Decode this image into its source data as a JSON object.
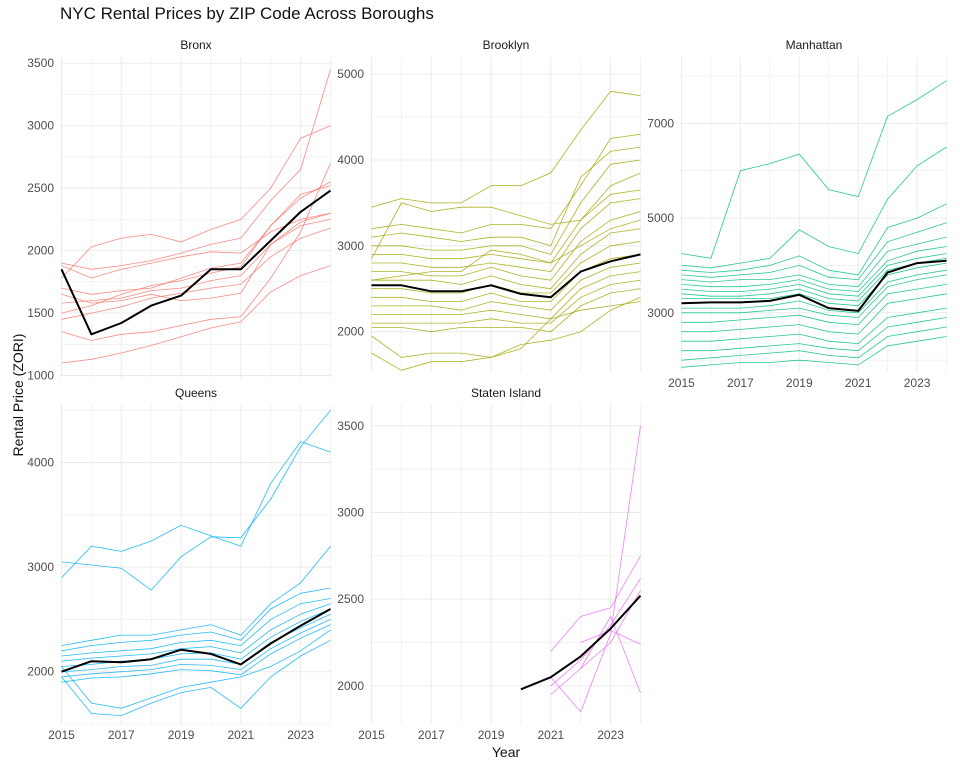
{
  "chart_data": {
    "type": "line",
    "title": "NYC Rental Prices by ZIP Code Across Boroughs",
    "xlabel": "Year",
    "ylabel": "Rental Price (ZORI)",
    "x_ticks": [
      2015,
      2017,
      2019,
      2021,
      2023
    ],
    "grid": true,
    "layout": "facet grid, 3 columns x 2 rows, independent y scales",
    "summary_line": {
      "color": "#000000",
      "description": "borough average"
    },
    "panels": [
      {
        "name": "Bronx",
        "color": "#F8766D",
        "xlim": [
          2015,
          2024
        ],
        "ylim": [
          980,
          3550
        ],
        "y_ticks": [
          1000,
          1500,
          2000,
          2500,
          3000,
          3500
        ],
        "average": {
          "x": [
            2015,
            2016,
            2017,
            2018,
            2019,
            2020,
            2021,
            2022,
            2023,
            2024
          ],
          "y": [
            1850,
            1330,
            1420,
            1560,
            1640,
            1850,
            1850,
            2080,
            2310,
            2480
          ]
        },
        "zip_series": [
          [
            1880,
            1780,
            1850,
            1900,
            1950,
            1990,
            1980,
            2150,
            2250,
            2300
          ],
          [
            1100,
            1130,
            1180,
            1240,
            1310,
            1380,
            1430,
            1670,
            1800,
            1880
          ],
          [
            1780,
            2030,
            2100,
            2130,
            2070,
            2170,
            2250,
            2500,
            2900,
            3000
          ],
          [
            1500,
            1560,
            1650,
            1720,
            1760,
            1820,
            1870,
            2200,
            2420,
            2550
          ],
          [
            1580,
            1600,
            1620,
            1680,
            1700,
            1760,
            1800,
            2050,
            2230,
            2300
          ],
          [
            1650,
            1580,
            1600,
            1650,
            1600,
            1620,
            1660,
            2050,
            2200,
            2250
          ],
          [
            1450,
            1500,
            1550,
            1620,
            1660,
            1700,
            1730,
            1950,
            2100,
            2180
          ],
          [
            1350,
            1280,
            1330,
            1350,
            1400,
            1450,
            1470,
            1780,
            2150,
            2700
          ],
          [
            1700,
            1650,
            1680,
            1700,
            1780,
            1860,
            1900,
            2200,
            2450,
            2520
          ],
          [
            1900,
            1850,
            1880,
            1920,
            1980,
            2050,
            2100,
            2400,
            2650,
            3450
          ]
        ]
      },
      {
        "name": "Brooklyn",
        "color": "#A3A500",
        "xlim": [
          2015,
          2024
        ],
        "ylim": [
          1530,
          5200
        ],
        "y_ticks": [
          2000,
          3000,
          4000,
          5000
        ],
        "average": {
          "x": [
            2015,
            2016,
            2017,
            2018,
            2019,
            2020,
            2021,
            2022,
            2023,
            2024
          ],
          "y": [
            2540,
            2540,
            2470,
            2470,
            2540,
            2440,
            2400,
            2700,
            2820,
            2900
          ]
        },
        "zip_series": [
          [
            3450,
            3550,
            3500,
            3500,
            3700,
            3700,
            3850,
            4350,
            4800,
            4750
          ],
          [
            3200,
            3250,
            3200,
            3150,
            3250,
            3250,
            3200,
            3700,
            4250,
            4300
          ],
          [
            3100,
            3150,
            3100,
            3050,
            3100,
            3100,
            3000,
            3800,
            4100,
            4150
          ],
          [
            3000,
            3000,
            2950,
            2950,
            3000,
            3000,
            2900,
            3500,
            3950,
            4000
          ],
          [
            2900,
            2900,
            2850,
            2850,
            2900,
            2850,
            2800,
            3300,
            3600,
            3650
          ],
          [
            2800,
            2800,
            2750,
            2750,
            2800,
            2750,
            2700,
            3200,
            3500,
            3550
          ],
          [
            2700,
            2700,
            2650,
            2650,
            2750,
            2650,
            2600,
            3050,
            3300,
            3400
          ],
          [
            2600,
            2600,
            2600,
            2550,
            2650,
            2550,
            2500,
            2900,
            3150,
            3200
          ],
          [
            2500,
            2500,
            2450,
            2450,
            2550,
            2450,
            2450,
            2800,
            3000,
            3050
          ],
          [
            2400,
            2400,
            2350,
            2350,
            2450,
            2350,
            2350,
            2700,
            2850,
            2900
          ],
          [
            2300,
            2300,
            2300,
            2250,
            2350,
            2300,
            2250,
            2600,
            2750,
            2800
          ],
          [
            2200,
            2200,
            2200,
            2200,
            2250,
            2200,
            2150,
            2500,
            2650,
            2700
          ],
          [
            2100,
            2100,
            2100,
            2100,
            2150,
            2100,
            2100,
            2400,
            2550,
            2600
          ],
          [
            2050,
            2050,
            2000,
            2050,
            2050,
            2050,
            2000,
            2300,
            2450,
            2500
          ],
          [
            1950,
            1700,
            1750,
            1750,
            1700,
            1850,
            1900,
            2000,
            2250,
            2400
          ],
          [
            1750,
            1550,
            1650,
            1650,
            1700,
            1800,
            2150,
            2250,
            2300,
            2350
          ],
          [
            2850,
            3500,
            3400,
            3450,
            3450,
            3350,
            3250,
            3300,
            3700,
            3850
          ],
          [
            2600,
            2650,
            2700,
            2700,
            2950,
            2900,
            2800,
            3000,
            3200,
            3300
          ]
        ]
      },
      {
        "name": "Manhattan",
        "color": "#00BF7D",
        "xlim": [
          2015,
          2024
        ],
        "ylim": [
          1750,
          8400
        ],
        "y_ticks": [
          3000,
          5000,
          7000
        ],
        "average": {
          "x": [
            2015,
            2016,
            2017,
            2018,
            2019,
            2020,
            2021,
            2022,
            2023,
            2024
          ],
          "y": [
            3200,
            3220,
            3220,
            3250,
            3380,
            3100,
            3040,
            3850,
            4050,
            4100
          ]
        },
        "zip_series": [
          [
            4250,
            4150,
            6000,
            6150,
            6350,
            5600,
            5450,
            7150,
            7500,
            7900
          ],
          [
            4000,
            3950,
            4050,
            4150,
            4750,
            4400,
            4250,
            5400,
            6100,
            6500
          ],
          [
            3900,
            3850,
            3900,
            4000,
            4200,
            3900,
            3800,
            4800,
            5000,
            5300
          ],
          [
            3800,
            3750,
            3800,
            3850,
            4000,
            3750,
            3700,
            4500,
            4700,
            4900
          ],
          [
            3700,
            3650,
            3700,
            3700,
            3800,
            3600,
            3550,
            4300,
            4450,
            4600
          ],
          [
            3600,
            3550,
            3550,
            3600,
            3700,
            3500,
            3450,
            4100,
            4300,
            4400
          ],
          [
            3500,
            3450,
            3450,
            3500,
            3600,
            3400,
            3350,
            4000,
            4150,
            4250
          ],
          [
            3400,
            3350,
            3350,
            3400,
            3500,
            3300,
            3250,
            3900,
            4050,
            4150
          ],
          [
            3300,
            3300,
            3300,
            3300,
            3400,
            3200,
            3150,
            3800,
            3950,
            4050
          ],
          [
            3100,
            3100,
            3100,
            3150,
            3250,
            3050,
            3000,
            3650,
            3800,
            3900
          ],
          [
            3000,
            3000,
            3000,
            3050,
            3100,
            2950,
            2900,
            3550,
            3700,
            3800
          ],
          [
            2800,
            2800,
            2850,
            2900,
            2950,
            2800,
            2750,
            3400,
            3500,
            3600
          ],
          [
            2600,
            2600,
            2650,
            2700,
            2750,
            2600,
            2550,
            3200,
            3300,
            3400
          ],
          [
            2400,
            2400,
            2450,
            2500,
            2550,
            2400,
            2350,
            2900,
            3000,
            3100
          ],
          [
            2200,
            2200,
            2250,
            2300,
            2350,
            2250,
            2200,
            2700,
            2800,
            2900
          ],
          [
            2000,
            2050,
            2100,
            2150,
            2200,
            2100,
            2050,
            2500,
            2600,
            2700
          ],
          [
            1850,
            1900,
            1950,
            1950,
            2000,
            1950,
            1900,
            2300,
            2400,
            2500
          ]
        ]
      },
      {
        "name": "Queens",
        "color": "#00B0F6",
        "xlim": [
          2015,
          2024
        ],
        "ylim": [
          1500,
          4550
        ],
        "y_ticks": [
          2000,
          3000,
          4000
        ],
        "average": {
          "x": [
            2015,
            2016,
            2017,
            2018,
            2019,
            2020,
            2021,
            2022,
            2023,
            2024
          ],
          "y": [
            2000,
            2100,
            2090,
            2120,
            2210,
            2170,
            2070,
            2270,
            2440,
            2600
          ]
        },
        "zip_series": [
          [
            3050,
            3020,
            2990,
            2780,
            3100,
            3290,
            3280,
            3650,
            4150,
            4500
          ],
          [
            2900,
            3200,
            3150,
            3250,
            3400,
            3300,
            3200,
            3800,
            4200,
            4100
          ],
          [
            2250,
            2300,
            2350,
            2350,
            2400,
            2450,
            2350,
            2650,
            2850,
            3200
          ],
          [
            2200,
            2250,
            2280,
            2300,
            2350,
            2380,
            2300,
            2600,
            2750,
            2800
          ],
          [
            2150,
            2180,
            2200,
            2220,
            2280,
            2300,
            2250,
            2500,
            2650,
            2700
          ],
          [
            2100,
            2130,
            2150,
            2170,
            2220,
            2240,
            2180,
            2400,
            2550,
            2650
          ],
          [
            2050,
            2070,
            2100,
            2120,
            2170,
            2180,
            2120,
            2330,
            2480,
            2600
          ],
          [
            2000,
            2020,
            2050,
            2060,
            2120,
            2120,
            2070,
            2280,
            2420,
            2550
          ],
          [
            1950,
            1980,
            2000,
            2020,
            2070,
            2060,
            2020,
            2220,
            2370,
            2500
          ],
          [
            1900,
            1940,
            1950,
            1980,
            2020,
            2010,
            1970,
            2170,
            2320,
            2450
          ],
          [
            2050,
            1700,
            1650,
            1750,
            1850,
            1900,
            1950,
            2050,
            2200,
            2400
          ],
          [
            1950,
            1600,
            1580,
            1700,
            1800,
            1850,
            1650,
            1950,
            2150,
            2300
          ]
        ]
      },
      {
        "name": "Staten Island",
        "color": "#E76BF3",
        "xlim": [
          2015,
          2024
        ],
        "ylim": [
          1780,
          3620
        ],
        "y_ticks": [
          2000,
          2500,
          3000,
          3500
        ],
        "average": {
          "x": [
            2020,
            2021,
            2022,
            2023,
            2024
          ],
          "y": [
            1980,
            2050,
            2170,
            2330,
            2520
          ]
        },
        "zip_series": [
          {
            "x": [
              2021,
              2022,
              2023,
              2024
            ],
            "y": [
              2200,
              2400,
              2450,
              2750
            ]
          },
          {
            "x": [
              2021,
              2022,
              2023,
              2024
            ],
            "y": [
              2000,
              2150,
              2350,
              2620
            ]
          },
          {
            "x": [
              2021,
              2022,
              2023,
              2024
            ],
            "y": [
              1950,
              2100,
              2250,
              2550
            ]
          },
          {
            "x": [
              2021,
              2022,
              2023,
              2024
            ],
            "y": [
              2050,
              1850,
              2300,
              3500
            ]
          },
          {
            "x": [
              2022,
              2023,
              2024
            ],
            "y": [
              2250,
              2320,
              2240
            ]
          },
          {
            "x": [
              2022,
              2023,
              2024
            ],
            "y": [
              2100,
              2400,
              1960
            ]
          }
        ]
      }
    ]
  }
}
